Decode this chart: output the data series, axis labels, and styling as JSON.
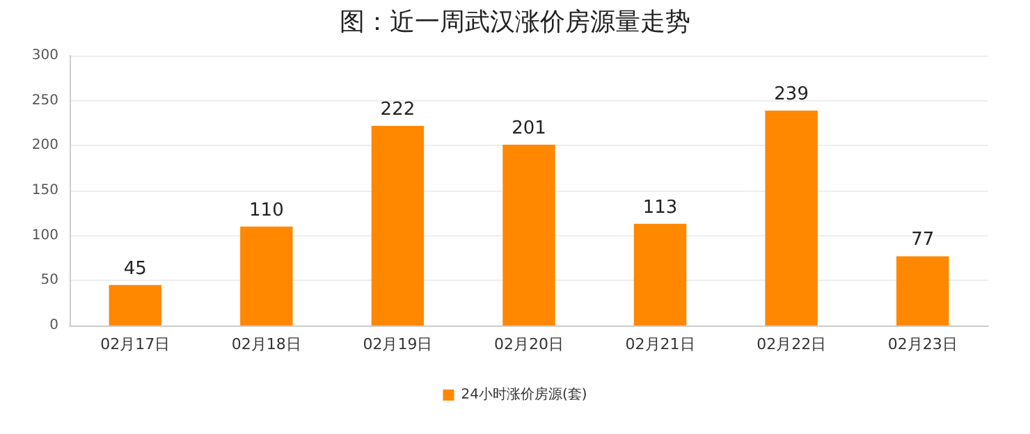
{
  "chart_data": {
    "type": "bar",
    "title": "图：近一周武汉涨价房源量走势",
    "categories": [
      "02月17日",
      "02月18日",
      "02月19日",
      "02月20日",
      "02月21日",
      "02月22日",
      "02月23日"
    ],
    "series": [
      {
        "name": "24小时涨价房源(套)",
        "color": "#ff8800",
        "values": [
          45,
          110,
          222,
          201,
          113,
          239,
          77
        ]
      }
    ],
    "ylim": [
      0,
      300
    ],
    "yticks": [
      0,
      50,
      100,
      150,
      200,
      250,
      300
    ],
    "grid": "y",
    "legend": "bottom",
    "data_labels": true
  }
}
